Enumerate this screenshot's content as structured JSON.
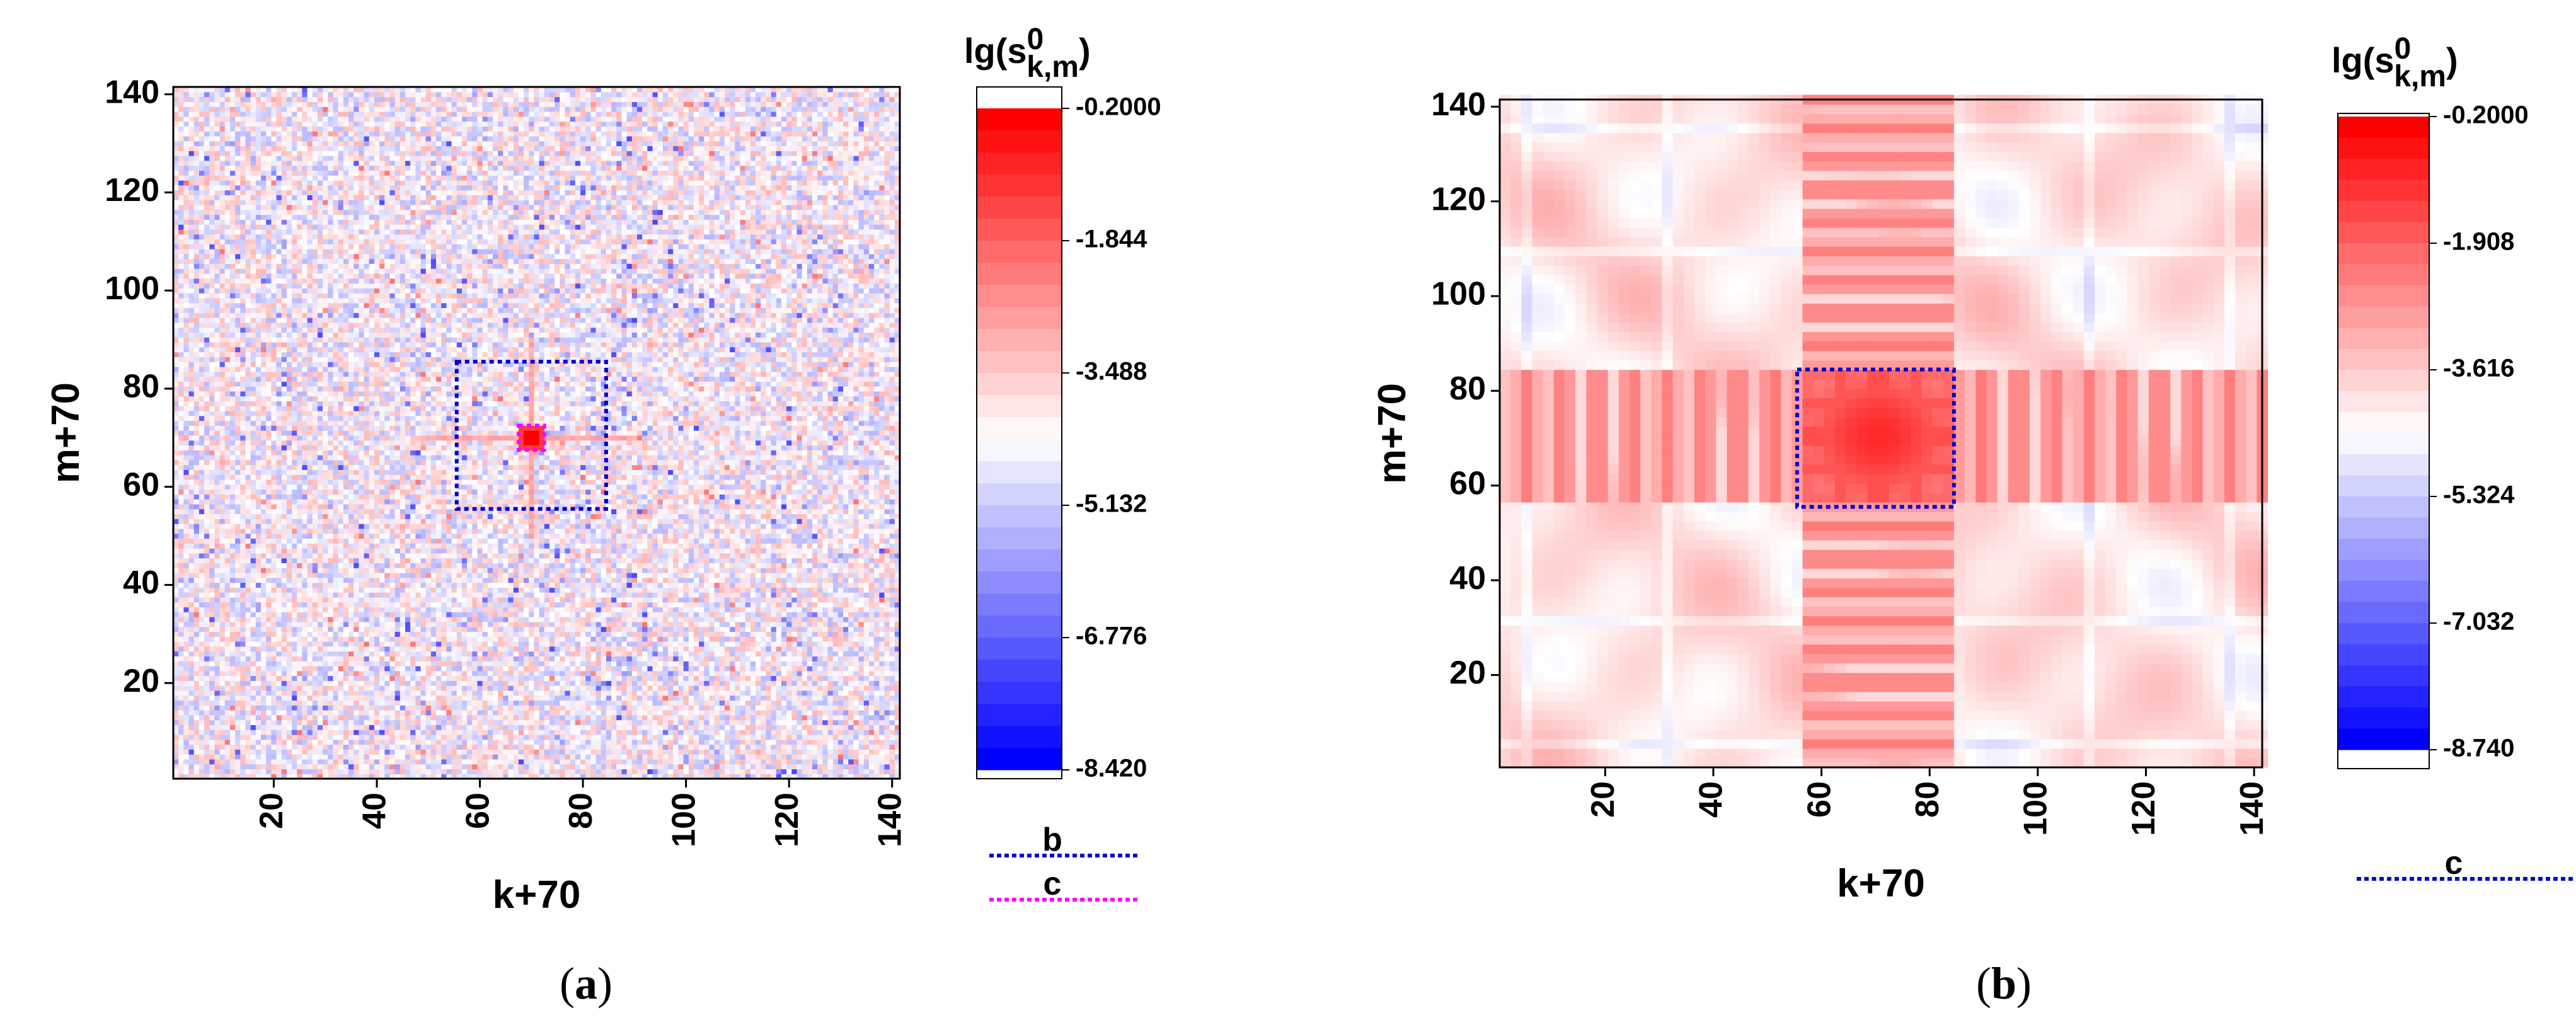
{
  "chart_data": [
    {
      "panel": "a",
      "type": "heatmap",
      "caption_open": "(",
      "caption_letter": "a",
      "caption_close": ")",
      "xlabel": "k+70",
      "ylabel": "m+70",
      "xlim": [
        1,
        141
      ],
      "ylim": [
        1,
        141
      ],
      "xticks": [
        20,
        40,
        60,
        80,
        100,
        120,
        140
      ],
      "yticks": [
        20,
        40,
        60,
        80,
        100,
        120,
        140
      ],
      "pattern": "noise",
      "colorbar": {
        "title_main": "lg(s",
        "title_sup": "0",
        "title_sub": "k,m",
        "title_close": ")",
        "max": -0.2,
        "min": -8.42,
        "tick_labels": [
          "-0.2000",
          "-1.844",
          "-3.488",
          "-5.132",
          "-6.776",
          "-8.420"
        ],
        "low_color": "#0000ff",
        "mid_color": "#ffffff",
        "high_color": "#ff0000"
      },
      "rectangles": [
        {
          "label": "b",
          "k": [
            56,
            84
          ],
          "m": [
            56,
            85
          ],
          "color": "#0000cc"
        },
        {
          "label": "c",
          "k": [
            68,
            72
          ],
          "m": [
            68,
            72
          ],
          "color": "#ff00ff"
        }
      ],
      "legend": [
        {
          "label": "b",
          "color": "#0000cc"
        },
        {
          "label": "c",
          "color": "#ff00ff"
        }
      ]
    },
    {
      "panel": "b",
      "type": "heatmap",
      "caption_open": "(",
      "caption_letter": "b",
      "caption_close": ")",
      "xlabel": "k+70",
      "ylabel": "m+70",
      "xlim": [
        1,
        141
      ],
      "ylim": [
        1,
        141
      ],
      "xticks": [
        20,
        40,
        60,
        80,
        100,
        120,
        140
      ],
      "yticks": [
        20,
        40,
        60,
        80,
        100,
        120,
        140
      ],
      "pattern": "cross",
      "colorbar": {
        "title_main": "lg(s",
        "title_sup": "0",
        "title_sub": "k,m",
        "title_close": ")",
        "max": -0.2,
        "min": -8.74,
        "tick_labels": [
          "-0.2000",
          "-1.908",
          "-3.616",
          "-5.324",
          "-7.032",
          "-8.740"
        ],
        "low_color": "#0000ff",
        "mid_color": "#ffffff",
        "high_color": "#ff0000"
      },
      "rectangles": [
        {
          "label": "c",
          "k": [
            56,
            84
          ],
          "m": [
            56,
            84
          ],
          "color": "#0000cc"
        }
      ],
      "legend": [
        {
          "label": "c",
          "color": "#0000cc"
        }
      ]
    }
  ]
}
